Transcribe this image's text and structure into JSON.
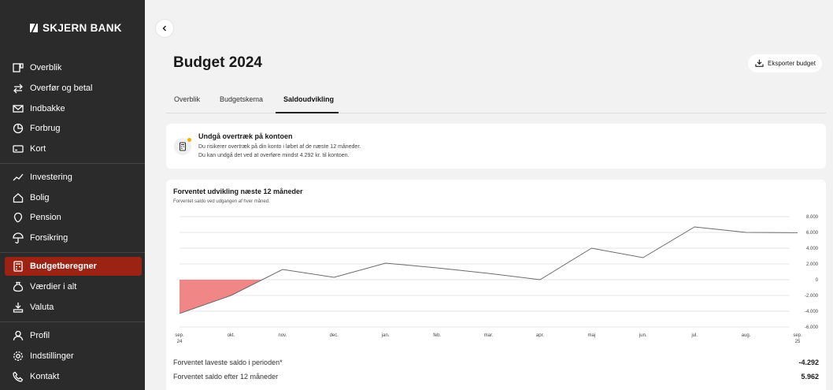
{
  "brand": {
    "name": "SKJERN BANK"
  },
  "sidebar": {
    "groups": [
      {
        "items": [
          {
            "label": "Overblik",
            "icon": "overview-icon"
          },
          {
            "label": "Overfør og betal",
            "icon": "transfer-icon"
          },
          {
            "label": "Indbakke",
            "icon": "mail-icon"
          },
          {
            "label": "Forbrug",
            "icon": "spending-icon"
          },
          {
            "label": "Kort",
            "icon": "card-icon"
          }
        ]
      },
      {
        "items": [
          {
            "label": "Investering",
            "icon": "chart-line-icon"
          },
          {
            "label": "Bolig",
            "icon": "house-icon"
          },
          {
            "label": "Pension",
            "icon": "pension-icon"
          },
          {
            "label": "Forsikring",
            "icon": "umbrella-icon"
          }
        ]
      },
      {
        "items": [
          {
            "label": "Budgetberegner",
            "icon": "calculator-icon",
            "active": true
          },
          {
            "label": "Værdier i alt",
            "icon": "money-bag-icon"
          },
          {
            "label": "Valuta",
            "icon": "currency-icon"
          }
        ]
      },
      {
        "items": [
          {
            "label": "Profil",
            "icon": "user-icon"
          },
          {
            "label": "Indstillinger",
            "icon": "gear-icon"
          },
          {
            "label": "Kontakt",
            "icon": "phone-icon"
          }
        ]
      }
    ]
  },
  "page": {
    "title": "Budget 2024",
    "export_label": "Eksporter budget",
    "tabs": [
      "Overblik",
      "Budgetskema",
      "Saldoudvikling"
    ],
    "active_tab": "Saldoudvikling"
  },
  "warning": {
    "title": "Undgå overtræk på kontoen",
    "line1": "Du risikerer overtræk på din konto i løbet af de næste 12 måneder.",
    "line2": "Du kan undgå det ved at overføre mindst 4.292 kr. til kontoen."
  },
  "chart_data": {
    "type": "line",
    "title": "Forventet udvikling næste 12 måneder",
    "subtitle": "Forventet saldo ved udgangen af hver måned.",
    "x": [
      "sep. 24",
      "okt.",
      "nov.",
      "dec.",
      "jan.",
      "feb.",
      "mar.",
      "apr.",
      "maj",
      "jun.",
      "jul.",
      "aug.",
      "sep. 25"
    ],
    "values": [
      -4292,
      -2000,
      1300,
      300,
      2100,
      1500,
      800,
      0,
      4000,
      2800,
      6700,
      6000,
      5962
    ],
    "ylim": [
      -6000,
      8000
    ],
    "yticks": [
      8000,
      6000,
      4000,
      2000,
      0,
      -2000,
      -4000,
      -6000
    ],
    "ytick_labels": [
      "8.000",
      "6.000",
      "4.000",
      "2.000",
      "0",
      "-2.000",
      "-4.000",
      "-6.000"
    ],
    "grid": true,
    "line_color": "#6b6b6b",
    "negative_fill": "#f08080"
  },
  "stats": [
    {
      "label": "Forventet laveste saldo i perioden*",
      "value": "-4.292"
    },
    {
      "label": "Forventet saldo efter 12 måneder",
      "value": "5.962"
    }
  ],
  "colors": {
    "sidebar_bg": "#2b2b2b",
    "active_item": "#9c2213",
    "warning_dot": "#f2b400"
  }
}
